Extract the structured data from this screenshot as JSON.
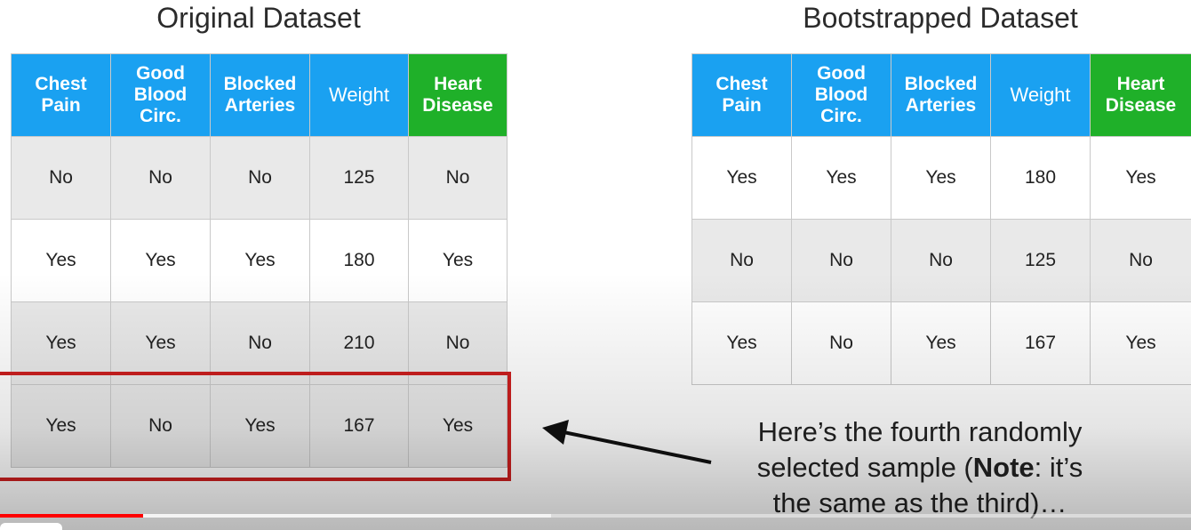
{
  "original": {
    "title": "Original Dataset",
    "headers": [
      "Chest\nPain",
      "Good\nBlood\nCirc.",
      "Blocked\nArteries",
      "Weight",
      "Heart\nDisease"
    ],
    "rows": [
      [
        "No",
        "No",
        "No",
        "125",
        "No"
      ],
      [
        "Yes",
        "Yes",
        "Yes",
        "180",
        "Yes"
      ],
      [
        "Yes",
        "Yes",
        "No",
        "210",
        "No"
      ],
      [
        "Yes",
        "No",
        "Yes",
        "167",
        "Yes"
      ]
    ]
  },
  "bootstrapped": {
    "title": "Bootstrapped Dataset",
    "headers": [
      "Chest\nPain",
      "Good\nBlood\nCirc.",
      "Blocked\nArteries",
      "Weight",
      "Heart\nDisease"
    ],
    "rows": [
      [
        "Yes",
        "Yes",
        "Yes",
        "180",
        "Yes"
      ],
      [
        "No",
        "No",
        "No",
        "125",
        "No"
      ],
      [
        "Yes",
        "No",
        "Yes",
        "167",
        "Yes"
      ]
    ]
  },
  "annotation": {
    "line1": "Here’s the fourth randomly",
    "line2_pre": "selected sample (",
    "line2_bold": "Note",
    "line2_post": ": it’s",
    "line3": "the same as the third)…"
  },
  "colors": {
    "header_blue": "#1aa1f1",
    "header_green": "#1fb029",
    "highlight_red": "#cc1f1f",
    "progress_red": "#ff0000"
  },
  "player": {
    "progress_fraction": 0.12
  }
}
